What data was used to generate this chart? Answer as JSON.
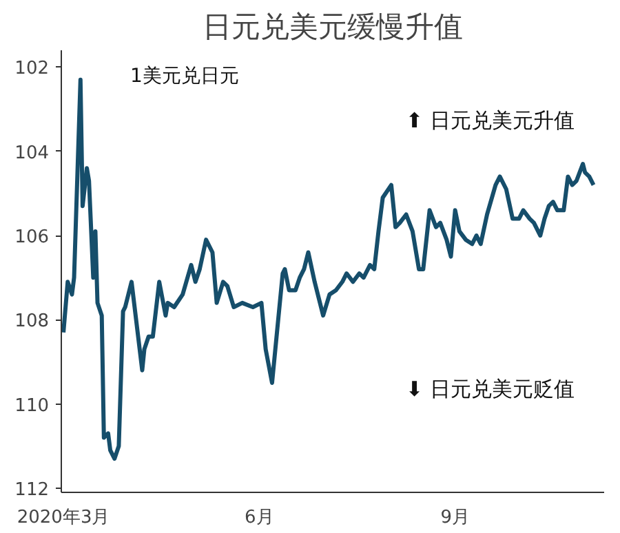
{
  "chart_data": {
    "type": "line",
    "title": "日元兑美元缓慢升值",
    "annotations": [
      "1美元兑日元",
      "⬆ 日元兑美元升值",
      "⬇ 日元兑美元贬值"
    ],
    "x": [
      "2020-03-01",
      "2020-03-03",
      "2020-03-05",
      "2020-03-06",
      "2020-03-09",
      "2020-03-10",
      "2020-03-12",
      "2020-03-13",
      "2020-03-15",
      "2020-03-16",
      "2020-03-17",
      "2020-03-19",
      "2020-03-20",
      "2020-03-22",
      "2020-03-23",
      "2020-03-25",
      "2020-03-27",
      "2020-03-29",
      "2020-03-30",
      "2020-04-02",
      "2020-04-07",
      "2020-04-08",
      "2020-04-10",
      "2020-04-12",
      "2020-04-15",
      "2020-04-18",
      "2020-04-19",
      "2020-04-22",
      "2020-04-26",
      "2020-04-30",
      "2020-05-02",
      "2020-05-04",
      "2020-05-07",
      "2020-05-10",
      "2020-05-12",
      "2020-05-15",
      "2020-05-17",
      "2020-05-20",
      "2020-05-24",
      "2020-05-29",
      "2020-06-02",
      "2020-06-04",
      "2020-06-07",
      "2020-06-12",
      "2020-06-13",
      "2020-06-15",
      "2020-06-18",
      "2020-06-20",
      "2020-06-22",
      "2020-06-24",
      "2020-06-27",
      "2020-07-01",
      "2020-07-04",
      "2020-07-07",
      "2020-07-10",
      "2020-07-12",
      "2020-07-15",
      "2020-07-18",
      "2020-07-20",
      "2020-07-23",
      "2020-07-25",
      "2020-07-27",
      "2020-07-29",
      "2020-08-02",
      "2020-08-04",
      "2020-08-06",
      "2020-08-09",
      "2020-08-12",
      "2020-08-15",
      "2020-08-17",
      "2020-08-20",
      "2020-08-23",
      "2020-08-25",
      "2020-08-28",
      "2020-08-30",
      "2020-09-01",
      "2020-09-03",
      "2020-09-06",
      "2020-09-09",
      "2020-09-11",
      "2020-09-13",
      "2020-09-16",
      "2020-09-20",
      "2020-09-22",
      "2020-09-25",
      "2020-09-28",
      "2020-10-01",
      "2020-10-03",
      "2020-10-06",
      "2020-10-08",
      "2020-10-11",
      "2020-10-13",
      "2020-10-15",
      "2020-10-17",
      "2020-10-19",
      "2020-10-22",
      "2020-10-24",
      "2020-10-26",
      "2020-10-28",
      "2020-10-31",
      "2020-11-01",
      "2020-11-03",
      "2020-11-05"
    ],
    "series": [
      {
        "color": "#164e6b",
        "values": [
          108.3,
          107.1,
          107.4,
          107.0,
          102.3,
          105.3,
          104.4,
          104.7,
          107.0,
          105.9,
          107.6,
          107.9,
          110.8,
          110.7,
          111.1,
          111.3,
          111.0,
          107.8,
          107.7,
          107.1,
          109.2,
          108.7,
          108.4,
          108.4,
          107.1,
          107.9,
          107.6,
          107.7,
          107.4,
          106.7,
          107.1,
          106.8,
          106.1,
          106.4,
          107.6,
          107.1,
          107.2,
          107.7,
          107.6,
          107.7,
          107.6,
          108.7,
          109.5,
          106.9,
          106.8,
          107.3,
          107.3,
          107.0,
          106.8,
          106.4,
          107.1,
          107.9,
          107.4,
          107.3,
          107.1,
          106.9,
          107.1,
          106.9,
          107.0,
          106.7,
          106.8,
          105.9,
          105.1,
          104.8,
          105.8,
          105.7,
          105.5,
          105.9,
          106.8,
          106.8,
          105.4,
          105.8,
          105.7,
          106.1,
          106.5,
          105.4,
          105.9,
          106.1,
          106.2,
          106.0,
          106.2,
          105.5,
          104.8,
          104.6,
          104.9,
          105.6,
          105.6,
          105.4,
          105.6,
          105.7,
          106.0,
          105.6,
          105.3,
          105.2,
          105.4,
          105.4,
          104.6,
          104.8,
          104.7,
          104.3,
          104.5,
          104.6,
          104.8
        ]
      }
    ],
    "xlim": [
      "2020-02-29",
      "2020-11-10"
    ],
    "xticks": [
      {
        "value": "2020-03-01",
        "label": "2020年3月"
      },
      {
        "value": "2020-06-01",
        "label": "6月"
      },
      {
        "value": "2020-09-01",
        "label": "9月"
      }
    ],
    "ylim": [
      112.1,
      101.6
    ],
    "yticks": [
      102,
      104,
      106,
      108,
      110,
      112
    ],
    "grid": false,
    "marker": "none",
    "line_style": "solid"
  }
}
